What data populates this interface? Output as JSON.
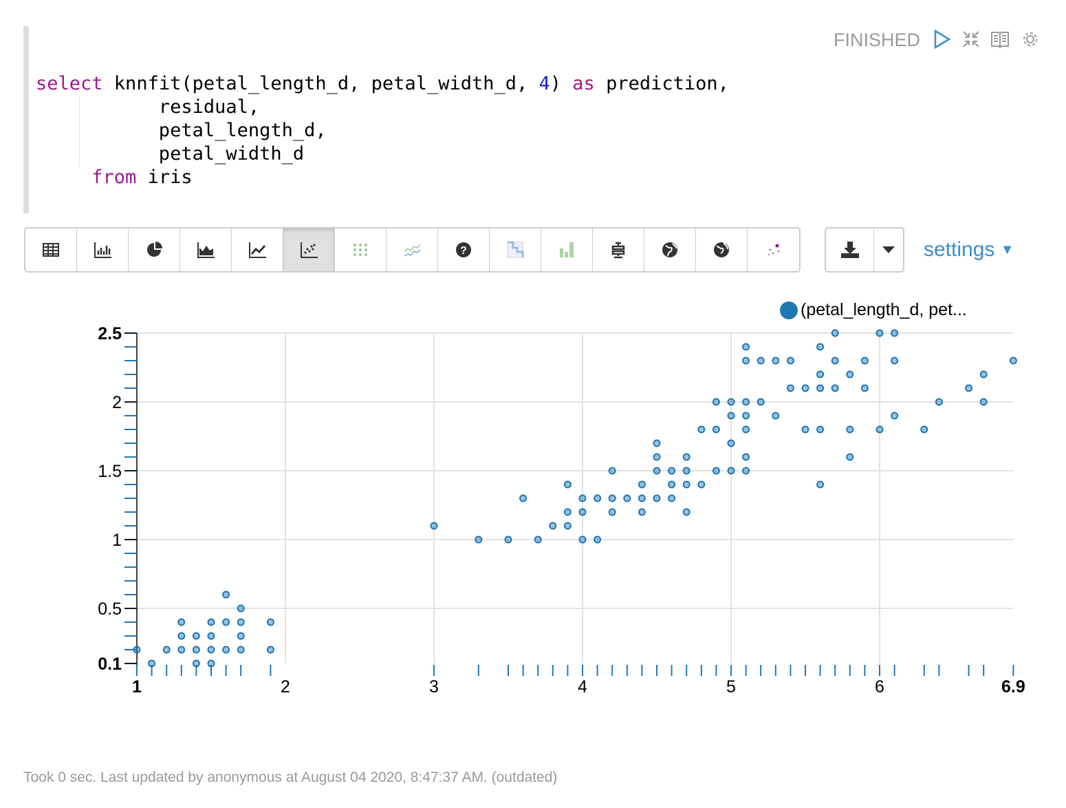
{
  "paragraph": {
    "status": "FINISHED",
    "code_lines": [
      [
        {
          "t": "select",
          "k": "kw"
        },
        {
          "t": " knnfit(petal_length_d, petal_width_d, ",
          "k": ""
        },
        {
          "t": "4",
          "k": "num"
        },
        {
          "t": ") ",
          "k": ""
        },
        {
          "t": "as",
          "k": "kw"
        },
        {
          "t": " prediction,",
          "k": ""
        }
      ],
      [
        {
          "t": "           residual,",
          "k": ""
        }
      ],
      [
        {
          "t": "           petal_length_d,",
          "k": ""
        }
      ],
      [
        {
          "t": "           petal_width_d",
          "k": ""
        }
      ],
      [
        {
          "t": "     ",
          "k": ""
        },
        {
          "t": "from",
          "k": "kw"
        },
        {
          "t": " iris",
          "k": ""
        }
      ]
    ],
    "footer": "Took 0 sec. Last updated by anonymous at August 04 2020, 8:47:37 AM. (outdated)"
  },
  "toolbar": {
    "buttons": [
      "table",
      "bar-chart",
      "pie-chart",
      "area-chart",
      "line-chart",
      "scatter-chart",
      "heatmap",
      "spark-lines",
      "help",
      "correlation",
      "bar-green",
      "box-plot",
      "world-map",
      "world-map-2",
      "bubble"
    ],
    "active": "scatter-chart",
    "settings_label": "settings"
  },
  "colors": {
    "accent": "#1f77b4",
    "link": "#3a8dd0"
  },
  "chart_data": {
    "type": "scatter",
    "legend": [
      "(petal_length_d, pet..."
    ],
    "legend_placement": "top-right",
    "xlim": [
      1,
      6.9
    ],
    "ylim": [
      0.1,
      2.5
    ],
    "xticks": [
      "1",
      "2",
      "3",
      "4",
      "5",
      "6",
      "6.9"
    ],
    "yticks": [
      "0.1",
      "0.5",
      "1",
      "1.5",
      "2",
      "2.5"
    ],
    "grid": true,
    "points": [
      [
        1.0,
        0.2
      ],
      [
        1.1,
        0.1
      ],
      [
        1.2,
        0.2
      ],
      [
        1.3,
        0.4
      ],
      [
        1.3,
        0.3
      ],
      [
        1.3,
        0.2
      ],
      [
        1.4,
        0.3
      ],
      [
        1.4,
        0.2
      ],
      [
        1.4,
        0.1
      ],
      [
        1.5,
        0.4
      ],
      [
        1.5,
        0.3
      ],
      [
        1.5,
        0.2
      ],
      [
        1.5,
        0.1
      ],
      [
        1.6,
        0.6
      ],
      [
        1.6,
        0.4
      ],
      [
        1.6,
        0.2
      ],
      [
        1.7,
        0.5
      ],
      [
        1.7,
        0.4
      ],
      [
        1.7,
        0.3
      ],
      [
        1.7,
        0.2
      ],
      [
        1.9,
        0.4
      ],
      [
        1.9,
        0.2
      ],
      [
        3.0,
        1.1
      ],
      [
        3.3,
        1.0
      ],
      [
        3.5,
        1.0
      ],
      [
        3.6,
        1.3
      ],
      [
        3.7,
        1.0
      ],
      [
        3.8,
        1.1
      ],
      [
        3.9,
        1.4
      ],
      [
        3.9,
        1.2
      ],
      [
        3.9,
        1.1
      ],
      [
        4.0,
        1.3
      ],
      [
        4.0,
        1.2
      ],
      [
        4.0,
        1.0
      ],
      [
        4.1,
        1.3
      ],
      [
        4.1,
        1.0
      ],
      [
        4.2,
        1.5
      ],
      [
        4.2,
        1.3
      ],
      [
        4.2,
        1.2
      ],
      [
        4.3,
        1.3
      ],
      [
        4.4,
        1.4
      ],
      [
        4.4,
        1.3
      ],
      [
        4.4,
        1.2
      ],
      [
        4.5,
        1.7
      ],
      [
        4.5,
        1.6
      ],
      [
        4.5,
        1.5
      ],
      [
        4.5,
        1.3
      ],
      [
        4.6,
        1.5
      ],
      [
        4.6,
        1.4
      ],
      [
        4.6,
        1.3
      ],
      [
        4.7,
        1.6
      ],
      [
        4.7,
        1.5
      ],
      [
        4.7,
        1.4
      ],
      [
        4.7,
        1.2
      ],
      [
        4.8,
        1.8
      ],
      [
        4.8,
        1.4
      ],
      [
        4.9,
        2.0
      ],
      [
        4.9,
        1.8
      ],
      [
        4.9,
        1.5
      ],
      [
        5.0,
        2.0
      ],
      [
        5.0,
        1.9
      ],
      [
        5.0,
        1.7
      ],
      [
        5.0,
        1.5
      ],
      [
        5.1,
        2.4
      ],
      [
        5.1,
        2.3
      ],
      [
        5.1,
        2.0
      ],
      [
        5.1,
        1.9
      ],
      [
        5.1,
        1.8
      ],
      [
        5.1,
        1.6
      ],
      [
        5.1,
        1.5
      ],
      [
        5.2,
        2.3
      ],
      [
        5.2,
        2.0
      ],
      [
        5.3,
        2.3
      ],
      [
        5.3,
        1.9
      ],
      [
        5.4,
        2.3
      ],
      [
        5.4,
        2.1
      ],
      [
        5.5,
        2.1
      ],
      [
        5.5,
        1.8
      ],
      [
        5.6,
        2.4
      ],
      [
        5.6,
        2.2
      ],
      [
        5.6,
        2.1
      ],
      [
        5.6,
        1.8
      ],
      [
        5.6,
        1.4
      ],
      [
        5.7,
        2.5
      ],
      [
        5.7,
        2.3
      ],
      [
        5.7,
        2.1
      ],
      [
        5.8,
        2.2
      ],
      [
        5.8,
        1.8
      ],
      [
        5.8,
        1.6
      ],
      [
        5.9,
        2.3
      ],
      [
        5.9,
        2.1
      ],
      [
        6.0,
        2.5
      ],
      [
        6.0,
        1.8
      ],
      [
        6.1,
        2.5
      ],
      [
        6.1,
        2.3
      ],
      [
        6.1,
        1.9
      ],
      [
        6.3,
        1.8
      ],
      [
        6.4,
        2.0
      ],
      [
        6.6,
        2.1
      ],
      [
        6.7,
        2.2
      ],
      [
        6.7,
        2.0
      ],
      [
        6.9,
        2.3
      ]
    ]
  }
}
